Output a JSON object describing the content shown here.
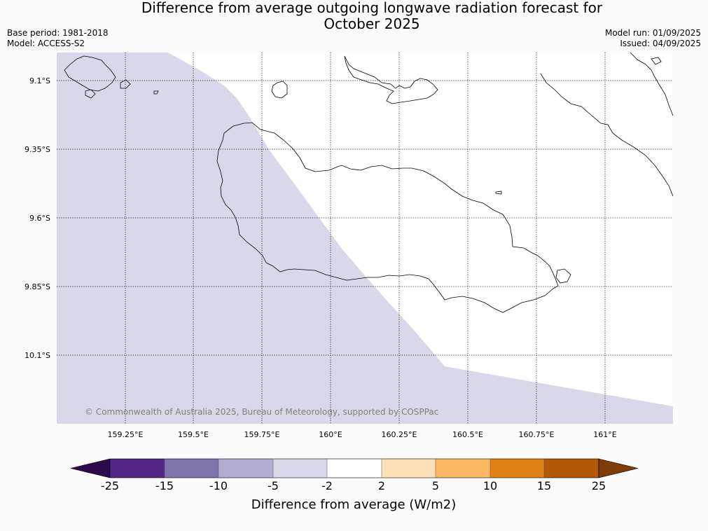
{
  "title_line1": "Difference from average outgoing longwave radiation forecast for",
  "title_line2": "October 2025",
  "meta_left": {
    "base_period": "Base period: 1981-2018",
    "model": "Model: ACCESS-S2"
  },
  "meta_right": {
    "model_run": "Model run: 01/09/2025",
    "issued": "Issued: 04/09/2025"
  },
  "map": {
    "lon_labels": [
      "159.25°E",
      "159.5°E",
      "159.75°E",
      "160°E",
      "160.25°E",
      "160.5°E",
      "160.75°E",
      "161°E"
    ],
    "lat_labels": [
      "9.1°S",
      "9.35°S",
      "9.6°S",
      "9.85°S",
      "10.1°S"
    ],
    "copyright": "© Commonwealth of Australia 2025, Bureau of Meteorology, supported by COSPPac",
    "region_colors": {
      "neg5_to_neg2": "#d8d8ea",
      "neg2_to_2": "#ffffff"
    }
  },
  "colorbar": {
    "label": "Difference from average (W/m2)",
    "tick_labels": [
      "-25",
      "-15",
      "-10",
      "-5",
      "-2",
      "2",
      "5",
      "10",
      "15",
      "25"
    ],
    "under_color": "#2e0a4a",
    "over_color": "#7f3b08",
    "bin_colors": [
      "#542788",
      "#8073ac",
      "#b2abd2",
      "#d8daeb",
      "#ffffff",
      "#fee0b6",
      "#fdb863",
      "#e08214",
      "#b35806"
    ]
  }
}
